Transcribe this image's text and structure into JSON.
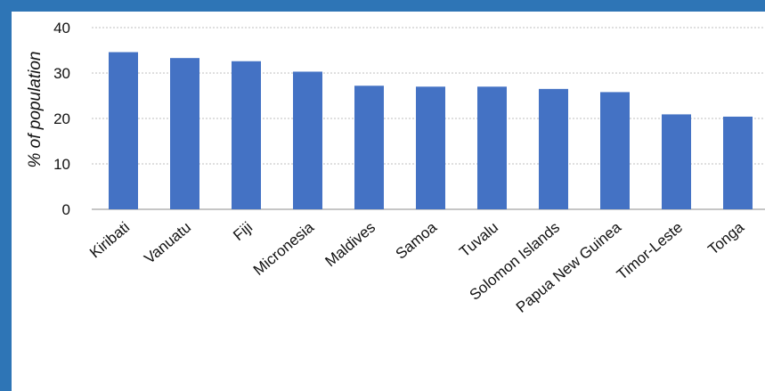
{
  "chart_data": {
    "type": "bar",
    "categories": [
      "Kiribati",
      "Vanuatu",
      "Fiji",
      "Micronesia",
      "Maldives",
      "Samoa",
      "Tuvalu",
      "Solomon Islands",
      "Papua New Guinea",
      "Timor-Leste",
      "Tonga"
    ],
    "values": [
      34.6,
      33.3,
      32.6,
      30.3,
      27.2,
      27.0,
      27.0,
      26.5,
      25.8,
      20.9,
      20.4
    ],
    "xlabel": "",
    "ylabel": "% of population",
    "ylim": [
      0,
      40
    ],
    "yticks": [
      0,
      10,
      20,
      30,
      40
    ],
    "grid": true,
    "bar_color": "#4472c4",
    "grid_color": "#bfbfbf",
    "frame_color": "#2e75b6"
  }
}
